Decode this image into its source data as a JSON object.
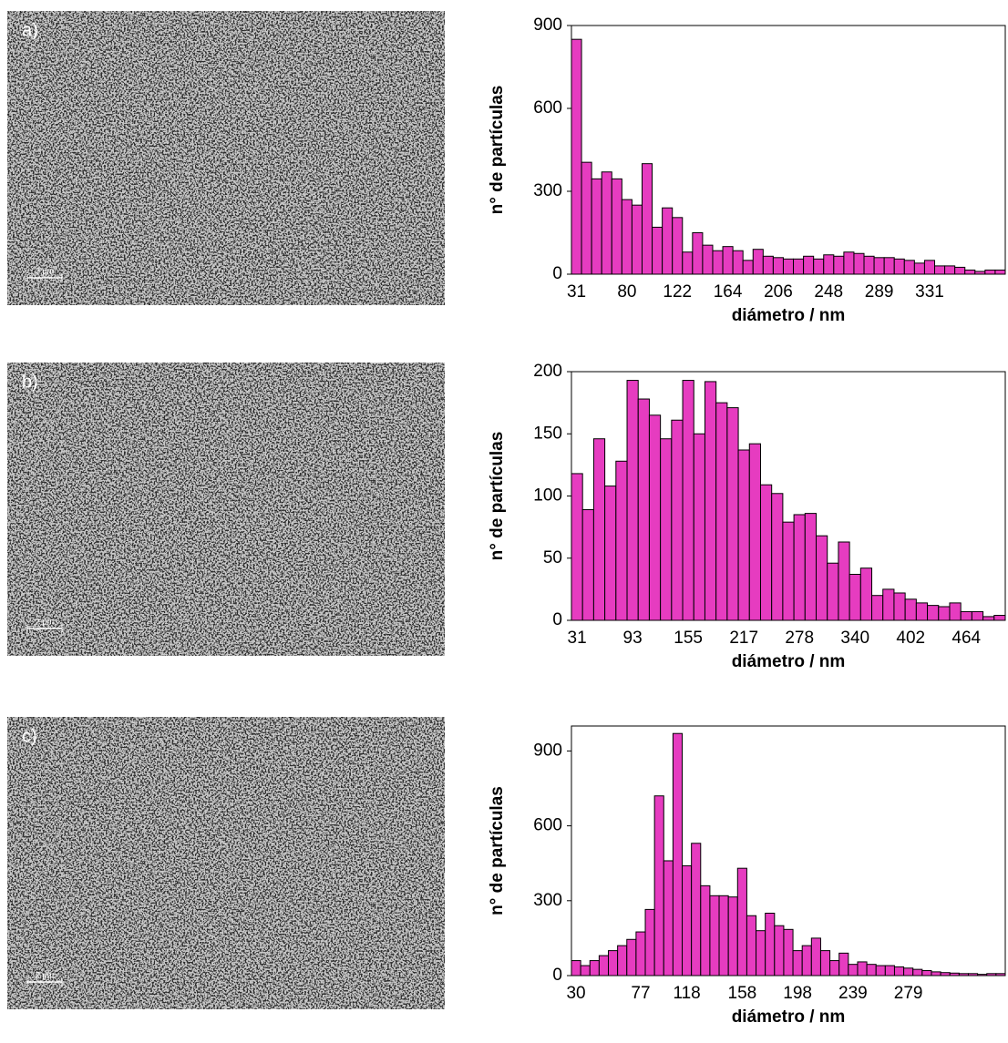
{
  "panels": [
    {
      "label": "a)",
      "scale_bar": "2 µm"
    },
    {
      "label": "b)",
      "scale_bar": "2 µm"
    },
    {
      "label": "c)",
      "scale_bar": "2 µm"
    }
  ],
  "chart_data": [
    {
      "type": "bar",
      "ylabel": "n° de partículas",
      "xlabel": "diámetro / nm",
      "color": "#e63cc0",
      "categories": [
        "31",
        null,
        null,
        null,
        null,
        "80",
        null,
        null,
        null,
        null,
        "122",
        null,
        null,
        null,
        null,
        "164",
        null,
        null,
        null,
        null,
        "206",
        null,
        null,
        null,
        null,
        "248",
        null,
        null,
        null,
        null,
        "289",
        null,
        null,
        null,
        null,
        "331",
        null,
        null,
        null,
        null,
        null,
        null,
        null
      ],
      "values": [
        850,
        405,
        345,
        370,
        345,
        270,
        250,
        400,
        170,
        240,
        205,
        80,
        150,
        105,
        85,
        100,
        85,
        50,
        90,
        65,
        60,
        55,
        55,
        65,
        55,
        70,
        65,
        80,
        75,
        65,
        60,
        60,
        55,
        50,
        40,
        50,
        30,
        30,
        25,
        15,
        10,
        15,
        15
      ],
      "ylim": [
        0,
        900
      ],
      "yticks": [
        0,
        300,
        600,
        900
      ]
    },
    {
      "type": "bar",
      "ylabel": "n° de partículas",
      "xlabel": "diámetro / nm",
      "color": "#e63cc0",
      "categories": [
        "31",
        null,
        null,
        null,
        null,
        "93",
        null,
        null,
        null,
        null,
        "155",
        null,
        null,
        null,
        null,
        "217",
        null,
        null,
        null,
        null,
        "278",
        null,
        null,
        null,
        null,
        "340",
        null,
        null,
        null,
        null,
        "402",
        null,
        null,
        null,
        null,
        "464",
        null,
        null,
        null
      ],
      "values": [
        118,
        89,
        146,
        108,
        128,
        193,
        178,
        165,
        146,
        161,
        193,
        150,
        192,
        175,
        171,
        137,
        142,
        109,
        102,
        79,
        85,
        86,
        68,
        46,
        63,
        37,
        42,
        20,
        25,
        22,
        17,
        14,
        12,
        11,
        14,
        7,
        7,
        3,
        4
      ],
      "ylim": [
        0,
        200
      ],
      "yticks": [
        0,
        50,
        100,
        150,
        200
      ]
    },
    {
      "type": "bar",
      "ylabel": "n° de partículas",
      "xlabel": "diámetro / nm",
      "color": "#e63cc0",
      "categories": [
        "30",
        null,
        null,
        null,
        null,
        null,
        null,
        "77",
        null,
        null,
        null,
        null,
        "118",
        null,
        null,
        null,
        null,
        null,
        "158",
        null,
        null,
        null,
        null,
        null,
        "198",
        null,
        null,
        null,
        null,
        null,
        "239",
        null,
        null,
        null,
        null,
        null,
        "279",
        null,
        null,
        null,
        null,
        null,
        null,
        null,
        null,
        null,
        null
      ],
      "values": [
        60,
        40,
        60,
        80,
        100,
        120,
        145,
        175,
        265,
        720,
        460,
        970,
        440,
        530,
        360,
        320,
        320,
        315,
        430,
        240,
        180,
        250,
        200,
        185,
        100,
        120,
        150,
        100,
        60,
        90,
        45,
        55,
        45,
        40,
        40,
        35,
        30,
        25,
        20,
        15,
        12,
        10,
        8,
        8,
        5,
        8,
        8
      ],
      "ylim": [
        0,
        1000
      ],
      "yticks": [
        0,
        300,
        600,
        900
      ]
    }
  ]
}
